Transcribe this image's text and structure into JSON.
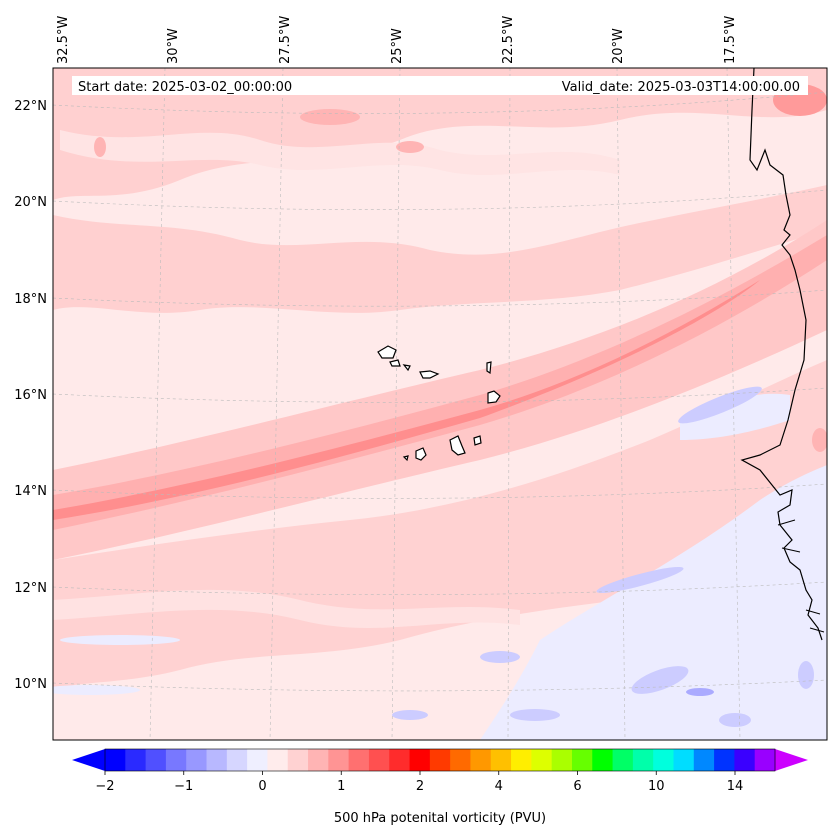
{
  "map": {
    "start_date": "Start date: 2025-03-02_00:00:00",
    "valid_date": "Valid_date: 2025-03-03T14:00:00.00",
    "lon_labels": [
      "32.5°W",
      "30°W",
      "27.5°W",
      "25°W",
      "22.5°W",
      "20°W",
      "17.5°W"
    ],
    "lat_labels": [
      "22°N",
      "20°N",
      "18°N",
      "16°N",
      "14°N",
      "12°N",
      "10°N"
    ],
    "colorbar": {
      "label": "500 hPa potenital vorticity (PVU)",
      "ticks": [
        "−2",
        "−1",
        "0",
        "1",
        "2",
        "4",
        "6",
        "10",
        "14"
      ],
      "colors": [
        "#0000ff",
        "#2a2aff",
        "#5050ff",
        "#7878ff",
        "#9898ff",
        "#b8b8ff",
        "#d6d6ff",
        "#efefff",
        "#ffecec",
        "#ffd2d2",
        "#ffb4b4",
        "#ff9494",
        "#ff7070",
        "#ff5050",
        "#ff2c2c",
        "#ff0000",
        "#ff3a00",
        "#ff6a00",
        "#ff9800",
        "#ffc000",
        "#ffee00",
        "#ddff00",
        "#aaff00",
        "#66ff00",
        "#00ff00",
        "#00ff66",
        "#00ffaa",
        "#00ffdd",
        "#00ddff",
        "#0088ff",
        "#0033ff",
        "#3a00ff",
        "#9900ff"
      ],
      "under_color": "#0000ff",
      "over_color": "#cc00ff"
    }
  }
}
